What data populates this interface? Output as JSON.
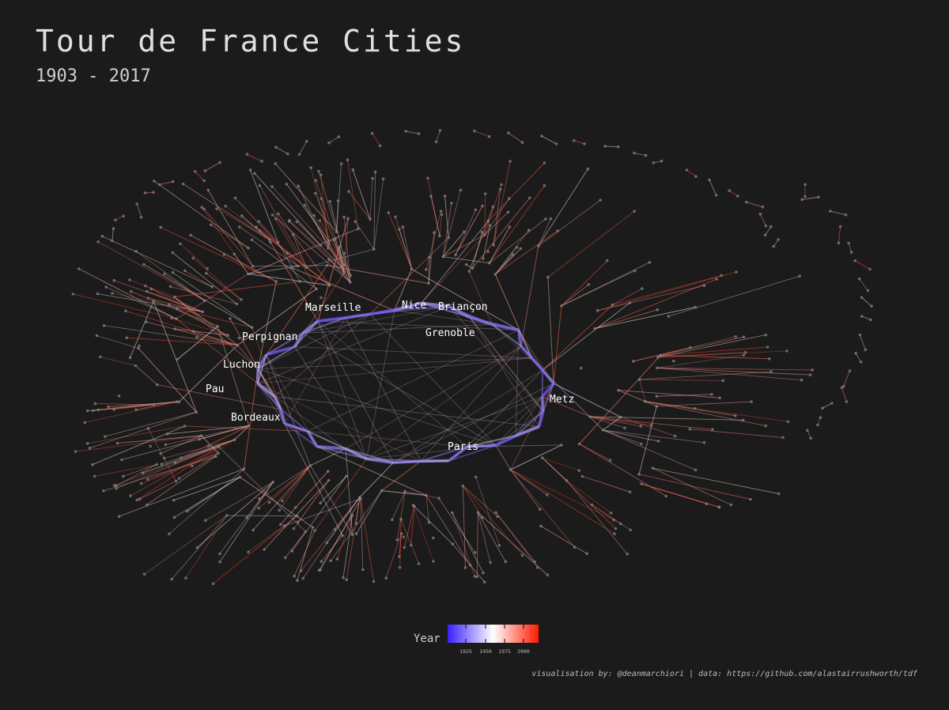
{
  "title": "Tour de France Cities",
  "subtitle": "1903 - 2017",
  "legend": {
    "title": "Year",
    "ticks": [
      "1925",
      "1950",
      "1975",
      "2000"
    ],
    "colors": {
      "early": "#3a1fff",
      "mid": "#ffffff",
      "late": "#ff1a00"
    }
  },
  "city_labels": [
    "Marseille",
    "Nice",
    "Briançon",
    "Grenoble",
    "Perpignan",
    "Luchon",
    "Pau",
    "Bordeaux",
    "Metz",
    "Paris"
  ],
  "caption": "visualisation by: @deanmarchiori | data: https://github.com/alastairrushworth/tdf",
  "background": "#1b1b1b"
}
